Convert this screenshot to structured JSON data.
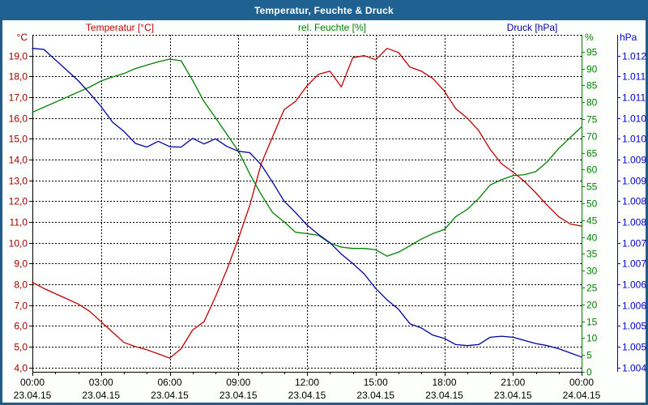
{
  "window": {
    "title": "Temperatur, Feuchte & Druck"
  },
  "colors": {
    "title_bar": "#1f6292",
    "window_border": "#235a88",
    "background": "#fcfffc",
    "plot_background": "#ffffff",
    "grid": "#000000",
    "axis_black": "#000000",
    "x_label": "#000000",
    "title_text": "#ffffff"
  },
  "chart_data": {
    "type": "line",
    "title": "Temperatur, Feuchte & Druck",
    "legend_position": "top",
    "grid": {
      "style": "dashed",
      "h_lines_every": "1 degC",
      "v_lines_every": "3 h"
    },
    "x": {
      "start": 0,
      "end": 24,
      "step_hours": 0.5,
      "minor_tick_every_hours": 1,
      "major_tick_every_hours": 3,
      "major_ticks": [
        {
          "hour": 0,
          "time": "00:00",
          "date": "23.04.15"
        },
        {
          "hour": 3,
          "time": "03:00",
          "date": "23.04.15"
        },
        {
          "hour": 6,
          "time": "06:00",
          "date": "23.04.15"
        },
        {
          "hour": 9,
          "time": "09:00",
          "date": "23.04.15"
        },
        {
          "hour": 12,
          "time": "12:00",
          "date": "23.04.15"
        },
        {
          "hour": 15,
          "time": "15:00",
          "date": "23.04.15"
        },
        {
          "hour": 18,
          "time": "18:00",
          "date": "23.04.15"
        },
        {
          "hour": 21,
          "time": "21:00",
          "date": "23.04.15"
        },
        {
          "hour": 24,
          "time": "00:00",
          "date": "24.04.15"
        }
      ]
    },
    "axes": {
      "temperature": {
        "label": "Temperatur [°C]",
        "unit": "°C",
        "side": "left",
        "label_color": "#a00000",
        "range_min": 3.79,
        "range_max": 20.0,
        "tick_values": [
          19,
          18,
          17,
          16,
          15,
          14,
          13,
          12,
          11,
          10,
          9,
          8,
          7,
          6,
          5,
          4
        ],
        "tick_labels": [
          "19,0",
          "18,0",
          "17,0",
          "16,0",
          "15,0",
          "14,0",
          "13,0",
          "12,0",
          "11,0",
          "10,0",
          "9,0",
          "8,0",
          "7,0",
          "6,0",
          "5,0",
          "4,0"
        ]
      },
      "humidity": {
        "label": "rel. Feuchte [%]",
        "unit": "%",
        "side": "right",
        "label_color": "#008000",
        "range_min": 0,
        "range_max": 100,
        "tick_values": [
          95,
          90,
          85,
          80,
          75,
          70,
          65,
          60,
          55,
          50,
          45,
          40,
          35,
          30,
          25,
          20,
          15,
          10,
          5,
          0
        ],
        "tick_labels": [
          "95",
          "90",
          "85",
          "80",
          "75",
          "70",
          "65",
          "60",
          "55",
          "50",
          "45",
          "40",
          "35",
          "30",
          "25",
          "20",
          "15",
          "10",
          "5",
          "0"
        ]
      },
      "pressure": {
        "label": "Druck [hPa]",
        "unit": "hPa",
        "side": "far-right",
        "label_color": "#0000cc",
        "range_min": 1.003895,
        "range_max": 1.012,
        "tick_values": [
          1.0115,
          1.011,
          1.0105,
          1.01,
          1.0095,
          1.009,
          1.0085,
          1.008,
          1.0075,
          1.007,
          1.0065,
          1.006,
          1.0055,
          1.005,
          1.0045,
          1.004
        ],
        "tick_labels": [
          "1.012",
          "1.011",
          "1.011",
          "1.010",
          "1.010",
          "1.009",
          "1.009",
          "1.008",
          "1.008",
          "1.007",
          "1.007",
          "1.006",
          "1.006",
          "1.005",
          "1.005",
          "1.004"
        ]
      }
    },
    "series": [
      {
        "name": "Temperatur [°C]",
        "axis": "temperature",
        "color": "#c00000",
        "values": [
          8.1,
          7.8,
          7.55,
          7.3,
          7.05,
          6.7,
          6.2,
          5.7,
          5.2,
          5.0,
          4.85,
          4.65,
          4.45,
          4.9,
          5.8,
          6.2,
          7.4,
          8.7,
          10.2,
          11.8,
          13.8,
          15.1,
          16.4,
          16.8,
          17.55,
          18.1,
          18.25,
          17.5,
          18.9,
          19.0,
          18.8,
          19.35,
          19.15,
          18.45,
          18.25,
          17.9,
          17.3,
          16.45,
          16.0,
          15.4,
          14.5,
          13.8,
          13.4,
          12.95,
          12.4,
          11.8,
          11.25,
          10.9,
          10.8
        ]
      },
      {
        "name": "rel. Feuchte [%]",
        "axis": "humidity",
        "color": "#008000",
        "values": [
          77,
          78.5,
          80,
          81.5,
          83,
          84.5,
          86.3,
          87.5,
          88.5,
          90,
          91,
          92,
          92.8,
          92.3,
          86.5,
          80.2,
          75.4,
          70.5,
          65.5,
          58.7,
          52.6,
          47.2,
          44.5,
          41.4,
          41.0,
          40.5,
          38.2,
          37.0,
          36.6,
          36.6,
          36.2,
          34.3,
          35.5,
          37.4,
          39.4,
          41.0,
          42.2,
          46.0,
          48.2,
          51.4,
          55.4,
          57.0,
          58.2,
          58.5,
          59.4,
          62.3,
          66.3,
          69.5,
          72.7
        ]
      },
      {
        "name": "Druck [hPa]",
        "axis": "pressure",
        "color": "#0000a0",
        "values": [
          1.011675,
          1.01165,
          1.0114,
          1.01115,
          1.0109,
          1.0106,
          1.010275,
          1.0099,
          1.009675,
          1.00939,
          1.0093,
          1.00944,
          1.00931,
          1.0093,
          1.00951,
          1.009375,
          1.0095,
          1.009315,
          1.0092,
          1.009165,
          1.008875,
          1.00845,
          1.008,
          1.007725,
          1.007425,
          1.0072,
          1.007,
          1.006725,
          1.0065,
          1.00625,
          1.0059,
          1.005625,
          1.0054,
          1.00505,
          1.00495,
          1.004775,
          1.0047,
          1.00455,
          1.004525,
          1.00455,
          1.004725,
          1.00475,
          1.004725,
          1.00465,
          1.004575,
          1.004525,
          1.00445,
          1.00435,
          1.00425
        ]
      }
    ]
  }
}
